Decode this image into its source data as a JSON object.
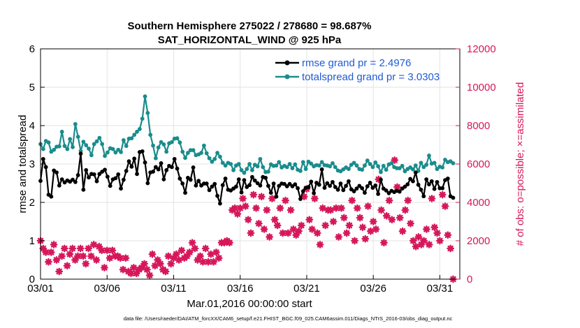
{
  "chart_data": {
    "type": "line",
    "title": "Southern Hemisphere 275022 / 278680 = 98.687%",
    "subtitle": "SAT_HORIZONTAL_WIND @ 925 hPa",
    "xlabel": "Mar.01,2016 00:00:00 start",
    "ylabel_left": "rmse and totalspread",
    "ylabel_right": "# of obs: o=possible; ×=assimilated",
    "x_tick_labels": [
      "03/01",
      "03/06",
      "03/11",
      "03/16",
      "03/21",
      "03/26",
      "03/31"
    ],
    "x_tick_days": [
      0,
      5,
      10,
      15,
      20,
      25,
      30
    ],
    "x_range_days": [
      0,
      31.5
    ],
    "ylim_left": [
      0,
      6
    ],
    "yticks_left": [
      "0",
      "1",
      "2",
      "3",
      "4",
      "5",
      "6"
    ],
    "ylim_right": [
      0,
      12000
    ],
    "yticks_right": [
      "0",
      "2000",
      "4000",
      "6000",
      "8000",
      "10000",
      "12000"
    ],
    "grid": true,
    "legend_position": "top-right",
    "colors": {
      "rmse": "#000000",
      "spread": "#1a8c8c",
      "obs": "#d6175a",
      "right_axis": "#d6175a",
      "legend_text": "#1f5bd6"
    },
    "series": [
      {
        "name": "rmse grand pr = 2.4976",
        "axis": "left",
        "values": [
          2.56,
          3.13,
          2.92,
          2.2,
          2.15,
          2.83,
          2.78,
          2.44,
          2.6,
          2.52,
          2.57,
          2.54,
          2.59,
          2.53,
          2.71,
          3.27,
          2.33,
          2.84,
          2.65,
          2.74,
          2.73,
          2.55,
          2.74,
          2.8,
          2.85,
          2.67,
          2.43,
          2.6,
          2.63,
          2.73,
          2.36,
          2.59,
          2.82,
          3.07,
          2.93,
          3.14,
          2.74,
          3.31,
          3.33,
          3.04,
          2.5,
          2.78,
          2.8,
          2.92,
          2.86,
          3.02,
          2.6,
          2.84,
          2.95,
          2.92,
          3.13,
          2.88,
          2.62,
          2.49,
          2.25,
          2.64,
          2.59,
          2.91,
          2.44,
          2.56,
          2.44,
          2.49,
          2.49,
          2.32,
          2.41,
          2.48,
          2.17,
          1.97,
          2.45,
          2.62,
          2.33,
          2.31,
          2.36,
          2.41,
          2.6,
          2.26,
          2.58,
          2.4,
          2.45,
          2.66,
          2.57,
          2.5,
          2.44,
          2.66,
          2.64,
          2.43,
          2.25,
          2.49,
          2.15,
          2.43,
          2.49,
          2.48,
          2.42,
          2.48,
          2.42,
          2.47,
          2.37,
          2.09,
          2.29,
          2.38,
          2.4,
          2.54,
          2.24,
          2.51,
          2.46,
          2.86,
          2.38,
          2.5,
          2.43,
          2.53,
          2.4,
          2.33,
          2.49,
          2.32,
          2.43,
          2.55,
          2.34,
          2.29,
          2.36,
          2.43,
          2.37,
          2.25,
          2.42,
          2.51,
          2.38,
          2.44,
          2.22,
          2.59,
          2.36,
          2.31,
          2.24,
          2.3,
          2.27,
          2.3,
          2.28,
          2.36,
          2.41,
          2.47,
          2.61,
          2.55,
          2.78,
          2.46,
          2.33,
          2.16,
          2.6,
          2.47,
          2.55,
          2.35,
          2.53,
          2.37,
          2.37,
          2.58,
          2.62,
          2.16,
          2.12
        ]
      },
      {
        "name": "totalspread grand pr = 3.0303",
        "axis": "left",
        "values": [
          3.52,
          3.39,
          3.6,
          3.56,
          3.32,
          3.37,
          3.45,
          3.46,
          3.84,
          3.47,
          3.39,
          3.65,
          3.44,
          4.04,
          3.71,
          3.34,
          3.58,
          3.49,
          3.4,
          3.23,
          3.52,
          3.59,
          3.68,
          3.52,
          3.21,
          3.3,
          3.41,
          3.39,
          3.3,
          3.37,
          3.31,
          3.62,
          3.47,
          3.66,
          3.67,
          3.76,
          3.84,
          3.91,
          4.18,
          4.76,
          4.33,
          3.76,
          3.48,
          3.15,
          3.43,
          3.57,
          3.51,
          3.32,
          3.54,
          3.57,
          3.66,
          3.67,
          3.56,
          3.32,
          3.16,
          3.29,
          3.36,
          3.36,
          3.23,
          3.25,
          3.29,
          3.48,
          3.28,
          3.15,
          3.06,
          3.13,
          3.29,
          3.19,
          3.03,
          2.96,
          3.03,
          3.0,
          2.84,
          2.96,
          3.0,
          2.84,
          2.77,
          2.87,
          3.0,
          2.84,
          2.98,
          2.94,
          3.13,
          2.92,
          2.79,
          2.8,
          2.99,
          2.95,
          2.96,
          3.05,
          2.91,
          2.95,
          2.92,
          3.0,
          2.89,
          2.99,
          2.85,
          2.82,
          3.05,
          2.87,
          3.06,
          3.01,
          2.94,
          2.97,
          2.96,
          3.05,
          2.97,
          2.96,
          2.94,
          3.02,
          2.92,
          2.83,
          2.81,
          2.86,
          2.91,
          2.87,
          2.98,
          3.03,
          2.96,
          2.87,
          2.85,
          2.96,
          3.09,
          3.0,
          2.92,
          3.04,
          2.94,
          2.79,
          2.95,
          2.85,
          2.99,
          3.02,
          2.92,
          2.89,
          2.89,
          2.95,
          2.81,
          2.87,
          2.91,
          2.86,
          2.96,
          2.82,
          3.03,
          2.92,
          2.98,
          3.22,
          3.01,
          3.03,
          2.87,
          2.93,
          2.91,
          3.11,
          3.05,
          3.07,
          3.02
        ]
      },
      {
        "name": "observations (o=possible, ×=assimilated)",
        "axis": "right",
        "values": [
          2000,
          1600,
          1400,
          900,
          1400,
          1800,
          1000,
          400,
          1200,
          1600,
          700,
          1300,
          1600,
          1000,
          1200,
          1600,
          1200,
          800,
          1600,
          1200,
          1800,
          1000,
          1700,
          1500,
          600,
          1500,
          1100,
          1500,
          1200,
          1200,
          1100,
          500,
          1100,
          400,
          300,
          600,
          300,
          500,
          600,
          800,
          500,
          200,
          1300,
          700,
          1000,
          800,
          500,
          400,
          1200,
          800,
          1100,
          1300,
          1000,
          1500,
          1100,
          1200,
          1400,
          1900,
          1600,
          1000,
          1200,
          900,
          1600,
          900,
          1300,
          900,
          1400,
          1100,
          1900,
          1900,
          2000,
          1900,
          3600,
          3700,
          3400,
          3700,
          4200,
          3800,
          3100,
          2400,
          4400,
          3700,
          2900,
          4300,
          2600,
          3600,
          2200,
          4200,
          3100,
          2800,
          3700,
          2400,
          4100,
          2400,
          3600,
          2600,
          2300,
          2500,
          2800,
          4300,
          4700,
          3100,
          2600,
          4200,
          2400,
          1800,
          3700,
          2800,
          3600,
          3600,
          3000,
          3700,
          2200,
          3700,
          3200,
          2400,
          2800,
          4100,
          2000,
          3700,
          3200,
          2700,
          2100,
          3800,
          2500,
          3000,
          2600,
          5200,
          3600,
          1900,
          3300,
          4100,
          3100,
          6200,
          4800,
          3200,
          2500,
          3600,
          4100,
          2900,
          2000,
          1700,
          2200,
          1800,
          2000,
          2600,
          1800,
          4200,
          2700,
          2400,
          2000,
          4400,
          3800,
          2300,
          1600,
          0
        ]
      }
    ]
  },
  "footnote": "data file: /Users/raeder/DAI/ATM_forcXX/CAM6_setup/f.e21.FHIST_BGC.f09_025.CAM6assim.011/Diags_NTrS_2016-03/obs_diag_output.nc"
}
